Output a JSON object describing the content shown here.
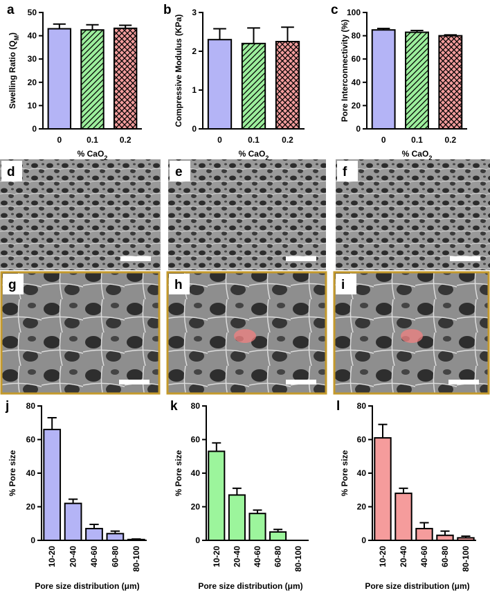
{
  "chart_data": [
    {
      "type": "bar",
      "panel": "a",
      "ylabel_parts": [
        "Swelling Ratio (Q",
        "M",
        ")"
      ],
      "xlabel_parts": [
        "% CaO",
        "2"
      ],
      "categories": [
        "0",
        "0.1",
        "0.2"
      ],
      "values": [
        43,
        42.5,
        43.2
      ],
      "errors": [
        2,
        2.2,
        1.3
      ],
      "colors": [
        "#b4b4f6",
        "#9cee9c",
        "#f29c9c"
      ],
      "patterns": [
        "solid",
        "hatch",
        "crosshatch"
      ],
      "ylim": [
        0,
        50
      ],
      "yticks": [
        0,
        10,
        20,
        30,
        40,
        50
      ]
    },
    {
      "type": "bar",
      "panel": "b",
      "ylabel_parts": [
        "Compressive Modulus (KPa)"
      ],
      "xlabel_parts": [
        "% CaO",
        "2"
      ],
      "categories": [
        "0",
        "0.1",
        "0.2"
      ],
      "values": [
        2.3,
        2.2,
        2.25
      ],
      "errors": [
        0.28,
        0.4,
        0.37
      ],
      "colors": [
        "#b4b4f6",
        "#9cee9c",
        "#f29c9c"
      ],
      "patterns": [
        "solid",
        "hatch",
        "crosshatch"
      ],
      "ylim": [
        0,
        3
      ],
      "yticks": [
        0,
        1,
        2,
        3
      ]
    },
    {
      "type": "bar",
      "panel": "c",
      "ylabel_parts": [
        "Pore Interconnectivity (%)"
      ],
      "xlabel_parts": [
        "% CaO",
        "2"
      ],
      "categories": [
        "0",
        "0.1",
        "0.2"
      ],
      "values": [
        85,
        83,
        80
      ],
      "errors": [
        1.2,
        1.5,
        0.7
      ],
      "colors": [
        "#b4b4f6",
        "#9cee9c",
        "#f29c9c"
      ],
      "patterns": [
        "solid",
        "hatch",
        "crosshatch"
      ],
      "ylim": [
        0,
        100
      ],
      "yticks": [
        0,
        20,
        40,
        60,
        80,
        100
      ]
    },
    {
      "type": "bar",
      "panel": "j",
      "ylabel_parts": [
        "% Pore size"
      ],
      "xlabel_parts": [
        "Pore size distribution (μm)"
      ],
      "categories": [
        "10-20",
        "20-40",
        "40-60",
        "60-80",
        "80-100"
      ],
      "values": [
        66,
        22,
        7,
        4,
        0.5
      ],
      "errors": [
        7,
        2.5,
        2.5,
        1.5,
        0.3
      ],
      "colors": [
        "#b4b4f6",
        "#b4b4f6",
        "#b4b4f6",
        "#b4b4f6",
        "#b4b4f6"
      ],
      "ylim": [
        0,
        80
      ],
      "yticks": [
        0,
        20,
        40,
        60,
        80
      ]
    },
    {
      "type": "bar",
      "panel": "k",
      "ylabel_parts": [
        "% Pore size"
      ],
      "xlabel_parts": [
        "Pore size distribution (μm)"
      ],
      "categories": [
        "10-20",
        "20-40",
        "40-60",
        "60-80",
        "80-100"
      ],
      "values": [
        53,
        27,
        16,
        5,
        0
      ],
      "errors": [
        5,
        4,
        2,
        1.5,
        0
      ],
      "colors": [
        "#9cf59c",
        "#9cf59c",
        "#9cf59c",
        "#9cf59c",
        "#9cf59c"
      ],
      "ylim": [
        0,
        80
      ],
      "yticks": [
        0,
        20,
        40,
        60,
        80
      ]
    },
    {
      "type": "bar",
      "panel": "l",
      "ylabel_parts": [
        "% Pore size"
      ],
      "xlabel_parts": [
        "Pore size distribution (μm)"
      ],
      "categories": [
        "10-20",
        "20-40",
        "40-60",
        "60-80",
        "80-100"
      ],
      "values": [
        61,
        28,
        7,
        3,
        1.5
      ],
      "errors": [
        8,
        3,
        3.5,
        2.5,
        1
      ],
      "colors": [
        "#f59c9c",
        "#f59c9c",
        "#f59c9c",
        "#f59c9c",
        "#f59c9c"
      ],
      "ylim": [
        0,
        80
      ],
      "yticks": [
        0,
        20,
        40,
        60,
        80
      ]
    }
  ],
  "image_panels": [
    "d",
    "e",
    "f",
    "g",
    "h",
    "i"
  ]
}
